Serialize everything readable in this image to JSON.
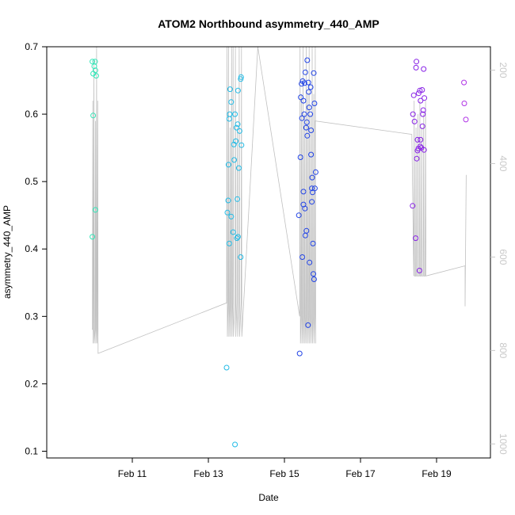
{
  "chart_data": {
    "type": "scatter",
    "title": "ATOM2 Northbound asymmetry_440_AMP",
    "xlabel": "Date",
    "ylabel": "asymmetry_440_AMP",
    "x_ticks": [
      "Feb 11",
      "Feb 13",
      "Feb 15",
      "Feb 17",
      "Feb 19"
    ],
    "x_tick_values": [
      10.0,
      12.0,
      14.0,
      16.0,
      18.0
    ],
    "y_ticks": [
      "0.1",
      "0.2",
      "0.3",
      "0.4",
      "0.5",
      "0.6",
      "0.7"
    ],
    "y_tick_values": [
      0.1,
      0.2,
      0.3,
      0.4,
      0.5,
      0.6,
      0.7
    ],
    "right_ticks": [
      "200",
      "400",
      "600",
      "800",
      "1000"
    ],
    "right_tick_values": [
      200,
      400,
      600,
      800,
      1000
    ],
    "xlim": [
      8.0,
      19.0
    ],
    "ylim": [
      0.09,
      0.7
    ],
    "right_lim": [
      1030,
      150
    ],
    "grid": false,
    "colors": {
      "axis": "#000000",
      "right_axis": "#c8c8c8",
      "line": "#c0c0c0",
      "series": [
        "#33e6b8",
        "#22bbe6",
        "#2244e6",
        "#8822e6",
        "#b033e6"
      ]
    },
    "series": [
      {
        "values": [
          [
            8.95,
            0.678
          ],
          [
            8.97,
            0.66
          ],
          [
            9.0,
            0.671
          ],
          [
            9.02,
            0.678
          ],
          [
            9.03,
            0.665
          ],
          [
            9.05,
            0.657
          ],
          [
            8.97,
            0.598
          ],
          [
            9.03,
            0.458
          ],
          [
            8.95,
            0.418
          ]
        ]
      },
      {
        "values": [
          [
            12.48,
            0.224
          ],
          [
            12.5,
            0.454
          ],
          [
            12.52,
            0.472
          ],
          [
            12.53,
            0.525
          ],
          [
            12.55,
            0.593
          ],
          [
            12.56,
            0.6
          ],
          [
            12.57,
            0.637
          ],
          [
            12.6,
            0.618
          ],
          [
            12.6,
            0.448
          ],
          [
            12.55,
            0.408
          ],
          [
            12.65,
            0.425
          ],
          [
            12.67,
            0.555
          ],
          [
            12.68,
            0.532
          ],
          [
            12.7,
            0.11
          ],
          [
            12.7,
            0.6
          ],
          [
            12.72,
            0.56
          ],
          [
            12.74,
            0.58
          ],
          [
            12.75,
            0.416
          ],
          [
            12.76,
            0.474
          ],
          [
            12.77,
            0.585
          ],
          [
            12.78,
            0.635
          ],
          [
            12.78,
            0.418
          ],
          [
            12.8,
            0.52
          ],
          [
            12.82,
            0.575
          ],
          [
            12.85,
            0.652
          ],
          [
            12.86,
            0.655
          ],
          [
            12.87,
            0.554
          ],
          [
            12.85,
            0.388
          ]
        ]
      },
      {
        "values": [
          [
            14.38,
            0.45
          ],
          [
            14.4,
            0.245
          ],
          [
            14.42,
            0.536
          ],
          [
            14.43,
            0.625
          ],
          [
            14.45,
            0.645
          ],
          [
            14.46,
            0.594
          ],
          [
            14.47,
            0.388
          ],
          [
            14.48,
            0.649
          ],
          [
            14.5,
            0.466
          ],
          [
            14.5,
            0.485
          ],
          [
            14.5,
            0.62
          ],
          [
            14.52,
            0.6
          ],
          [
            14.53,
            0.646
          ],
          [
            14.54,
            0.46
          ],
          [
            14.55,
            0.42
          ],
          [
            14.55,
            0.662
          ],
          [
            14.57,
            0.58
          ],
          [
            14.58,
            0.427
          ],
          [
            14.59,
            0.588
          ],
          [
            14.6,
            0.68
          ],
          [
            14.6,
            0.568
          ],
          [
            14.62,
            0.287
          ],
          [
            14.63,
            0.647
          ],
          [
            14.64,
            0.633
          ],
          [
            14.65,
            0.61
          ],
          [
            14.66,
            0.38
          ],
          [
            14.68,
            0.6
          ],
          [
            14.69,
            0.64
          ],
          [
            14.7,
            0.576
          ],
          [
            14.7,
            0.54
          ],
          [
            14.72,
            0.47
          ],
          [
            14.72,
            0.49
          ],
          [
            14.73,
            0.506
          ],
          [
            14.74,
            0.484
          ],
          [
            14.75,
            0.408
          ],
          [
            14.76,
            0.363
          ],
          [
            14.77,
            0.661
          ],
          [
            14.78,
            0.355
          ],
          [
            14.79,
            0.616
          ],
          [
            14.8,
            0.49
          ],
          [
            14.82,
            0.514
          ]
        ]
      },
      {
        "values": [
          [
            17.37,
            0.464
          ],
          [
            17.38,
            0.6
          ],
          [
            17.4,
            0.628
          ],
          [
            17.42,
            0.589
          ],
          [
            17.45,
            0.416
          ],
          [
            17.46,
            0.669
          ],
          [
            17.47,
            0.678
          ],
          [
            17.48,
            0.534
          ],
          [
            17.5,
            0.546
          ],
          [
            17.5,
            0.562
          ],
          [
            17.52,
            0.549
          ],
          [
            17.53,
            0.631
          ],
          [
            17.55,
            0.368
          ],
          [
            17.56,
            0.635
          ],
          [
            17.57,
            0.552
          ],
          [
            17.58,
            0.562
          ],
          [
            17.58,
            0.62
          ],
          [
            17.6,
            0.55
          ],
          [
            17.62,
            0.636
          ],
          [
            17.63,
            0.582
          ],
          [
            17.64,
            0.6
          ],
          [
            17.65,
            0.606
          ],
          [
            17.66,
            0.667
          ],
          [
            17.67,
            0.547
          ],
          [
            17.68,
            0.624
          ]
        ]
      },
      {
        "values": [
          [
            18.72,
            0.647
          ],
          [
            18.73,
            0.616
          ],
          [
            18.77,
            0.592
          ]
        ]
      }
    ]
  }
}
